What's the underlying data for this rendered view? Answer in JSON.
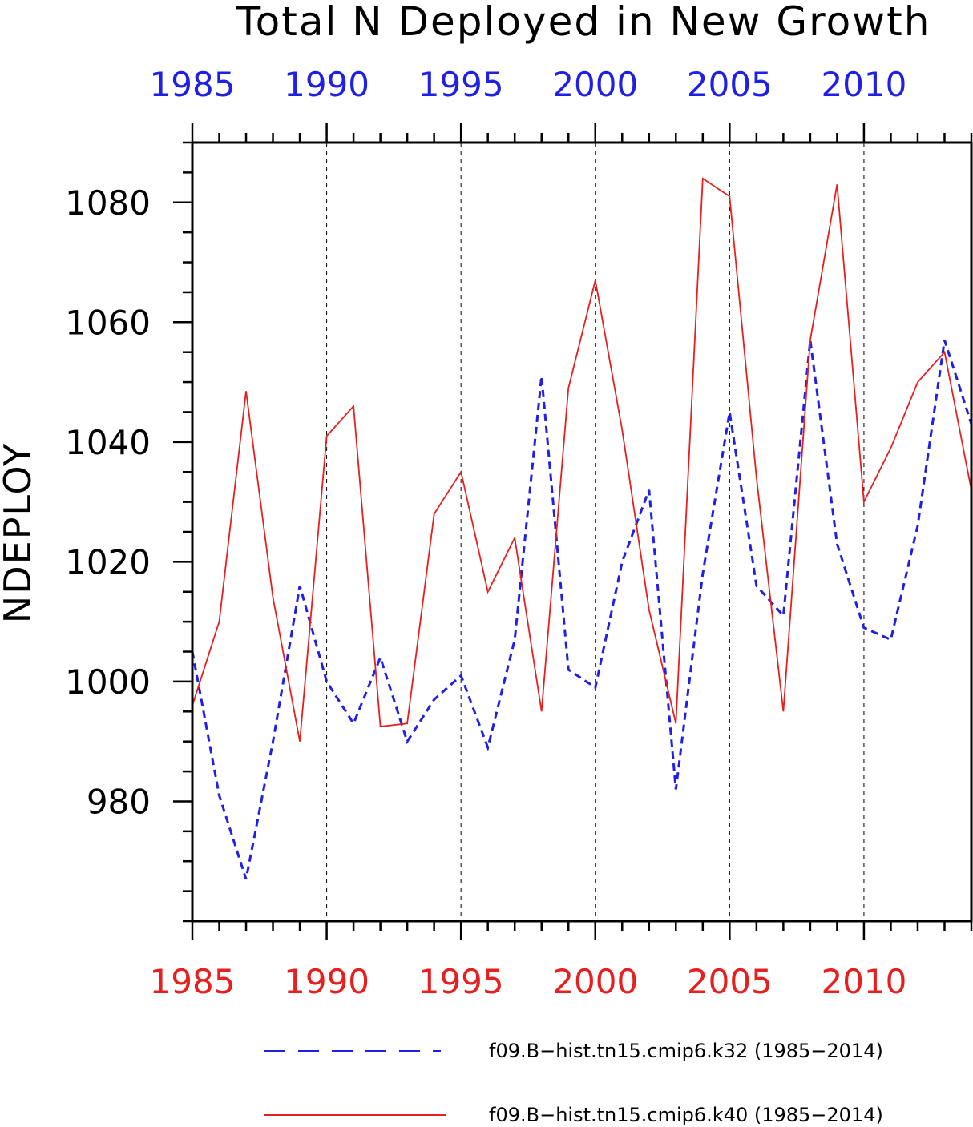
{
  "chart_data": {
    "type": "line",
    "title": "Total N Deployed in New Growth",
    "ylabel": "NDEPLOY",
    "xlabel": "",
    "xlim": [
      1985,
      2014
    ],
    "ylim": [
      960,
      1090
    ],
    "yticks": [
      980,
      1000,
      1020,
      1040,
      1060,
      1080
    ],
    "yticks_minor_step": 5,
    "xticks": [
      1985,
      1990,
      1995,
      2000,
      2005,
      2010
    ],
    "xtick_labels": [
      "1985",
      "1990",
      "1995",
      "2000",
      "2005",
      "2010"
    ],
    "top_axis_color": "#1f1fe6",
    "bottom_axis_color": "#e61f1f",
    "vertical_grid": true,
    "grid_style": "dashed",
    "x": [
      1985,
      1986,
      1987,
      1988,
      1989,
      1990,
      1991,
      1992,
      1993,
      1994,
      1995,
      1996,
      1997,
      1998,
      1999,
      2000,
      2001,
      2002,
      2003,
      2004,
      2005,
      2006,
      2007,
      2008,
      2009,
      2010,
      2011,
      2012,
      2013,
      2014
    ],
    "series": [
      {
        "name": "f09.B−hist.tn15.cmip6.k32 (1985−2014)",
        "color": "#1f1fe6",
        "style": "dashed",
        "values": [
          1005,
          981,
          967,
          990,
          1016,
          1000,
          993,
          1004,
          990,
          997,
          1001,
          989,
          1007,
          1051,
          1002,
          999,
          1020,
          1032,
          982,
          1018,
          1045,
          1016,
          1011,
          1057,
          1023,
          1009,
          1007,
          1026,
          1057,
          1043
        ]
      },
      {
        "name": "f09.B−hist.tn15.cmip6.k40 (1985−2014)",
        "color": "#e61f1f",
        "style": "solid",
        "values": [
          996,
          1010,
          1048.5,
          1014,
          990,
          1041,
          1046,
          992.5,
          993,
          1028,
          1035,
          1015,
          1024,
          995,
          1049,
          1067,
          1042,
          1012,
          993,
          1084,
          1081,
          1034,
          995,
          1057,
          1083,
          1030,
          1039,
          1050,
          1055,
          1032
        ]
      }
    ],
    "legend_position": "bottom"
  }
}
